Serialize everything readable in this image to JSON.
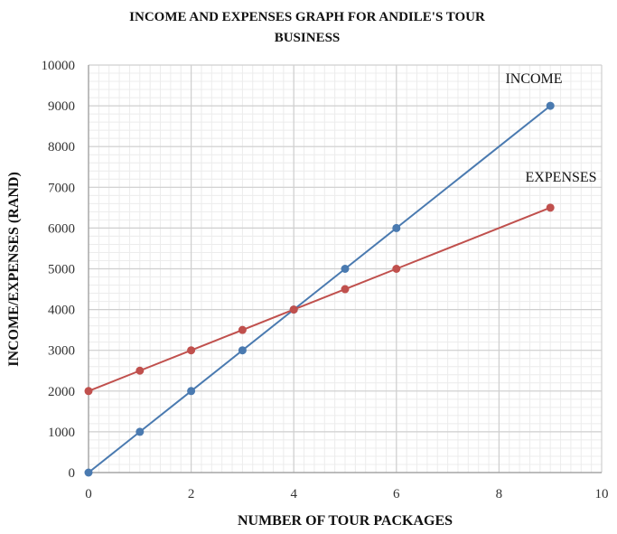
{
  "chart_data": {
    "type": "line",
    "title_lines": [
      "INCOME AND EXPENSES GRAPH FOR ANDILE'S TOUR",
      "BUSINESS"
    ],
    "xlabel": "NUMBER OF TOUR PACKAGES",
    "ylabel": "INCOME/EXPENSES (RAND)",
    "xlim": [
      0,
      10
    ],
    "ylim": [
      0,
      10000
    ],
    "x_ticks": [
      0,
      2,
      4,
      6,
      8,
      10
    ],
    "y_ticks": [
      0,
      1000,
      2000,
      3000,
      4000,
      5000,
      6000,
      7000,
      8000,
      9000,
      10000
    ],
    "grid": true,
    "minor_grid": true,
    "series": [
      {
        "name": "INCOME",
        "color": "#4a7ab0",
        "x": [
          0,
          1,
          2,
          3,
          4,
          5,
          6,
          9
        ],
        "y": [
          0,
          1000,
          2000,
          3000,
          4000,
          5000,
          6000,
          9000
        ]
      },
      {
        "name": "EXPENSES",
        "color": "#c0504d",
        "x": [
          0,
          1,
          2,
          3,
          4,
          5,
          6,
          9
        ],
        "y": [
          2000,
          2500,
          3000,
          3500,
          4000,
          4500,
          5000,
          6500
        ]
      }
    ]
  }
}
